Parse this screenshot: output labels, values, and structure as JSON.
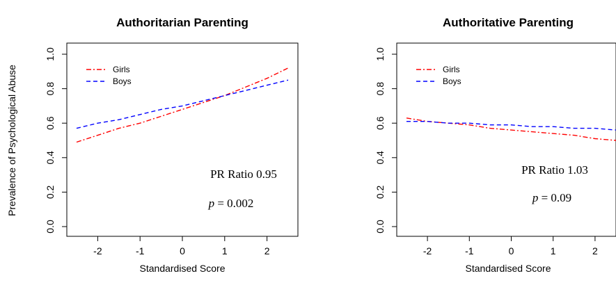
{
  "figure": {
    "ylabel": "Prevalence of Psychological Abuse"
  },
  "chart_data": [
    {
      "type": "line",
      "title": "Authoritarian Parenting",
      "xlabel": "Standardised Score",
      "ylabel": "Prevalence of Psychological Abuse",
      "xlim": [
        -2.5,
        2.5
      ],
      "ylim": [
        0.0,
        1.0
      ],
      "xticks": [
        -2,
        -1,
        0,
        1,
        2
      ],
      "yticks": [
        0.0,
        0.2,
        0.4,
        0.6,
        0.8,
        1.0
      ],
      "xtick_labels": [
        "-2",
        "-1",
        "0",
        "1",
        "2"
      ],
      "ytick_labels": [
        "0.0",
        "0.2",
        "0.4",
        "0.6",
        "0.8",
        "1.0"
      ],
      "legend_position": "top-left",
      "series": [
        {
          "name": "Girls",
          "color": "#ff0000",
          "dash": "dashdot",
          "x": [
            -2.5,
            -2,
            -1.5,
            -1,
            -0.5,
            0,
            0.5,
            1,
            1.5,
            2,
            2.5
          ],
          "y": [
            0.49,
            0.53,
            0.57,
            0.6,
            0.64,
            0.68,
            0.72,
            0.76,
            0.81,
            0.86,
            0.92
          ]
        },
        {
          "name": "Boys",
          "color": "#0000ff",
          "dash": "dashed",
          "x": [
            -2.5,
            -2,
            -1.5,
            -1,
            -0.5,
            0,
            0.5,
            1,
            1.5,
            2,
            2.5
          ],
          "y": [
            0.57,
            0.6,
            0.62,
            0.65,
            0.68,
            0.7,
            0.73,
            0.76,
            0.79,
            0.82,
            0.85
          ]
        }
      ],
      "annotations": {
        "ratio_text": "PR Ratio 0.95",
        "p_symbol": "p",
        "p_value_text": " = 0.002"
      }
    },
    {
      "type": "line",
      "title": "Authoritative Parenting",
      "xlabel": "Standardised Score",
      "ylabel": "",
      "xlim": [
        -2.5,
        2.5
      ],
      "ylim": [
        0.0,
        1.0
      ],
      "xticks": [
        -2,
        -1,
        0,
        1,
        2
      ],
      "yticks": [
        0.0,
        0.2,
        0.4,
        0.6,
        0.8,
        1.0
      ],
      "xtick_labels": [
        "-2",
        "-1",
        "0",
        "1",
        "2"
      ],
      "ytick_labels": [
        "0.0",
        "0.2",
        "0.4",
        "0.6",
        "0.8",
        "1.0"
      ],
      "legend_position": "top-left",
      "series": [
        {
          "name": "Girls",
          "color": "#ff0000",
          "dash": "dashdot",
          "x": [
            -2.5,
            -2,
            -1.5,
            -1,
            -0.5,
            0,
            0.5,
            1,
            1.5,
            2,
            2.5
          ],
          "y": [
            0.63,
            0.61,
            0.6,
            0.59,
            0.57,
            0.56,
            0.55,
            0.54,
            0.53,
            0.51,
            0.5
          ]
        },
        {
          "name": "Boys",
          "color": "#0000ff",
          "dash": "dashed",
          "x": [
            -2.5,
            -2,
            -1.5,
            -1,
            -0.5,
            0,
            0.5,
            1,
            1.5,
            2,
            2.5
          ],
          "y": [
            0.61,
            0.61,
            0.6,
            0.6,
            0.59,
            0.59,
            0.58,
            0.58,
            0.57,
            0.57,
            0.56
          ]
        }
      ],
      "annotations": {
        "ratio_text": "PR Ratio 1.03",
        "p_symbol": "p",
        "p_value_text": " = 0.09"
      }
    }
  ]
}
